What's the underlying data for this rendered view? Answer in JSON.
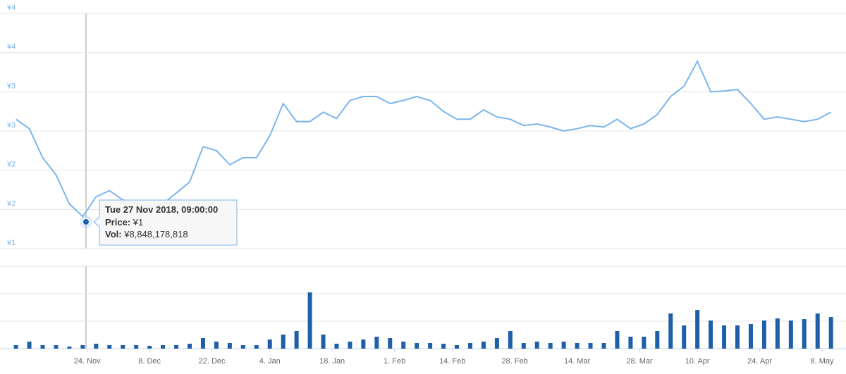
{
  "chart_data": [
    {
      "type": "line",
      "color": "#7cb5ec",
      "x": [
        "2018-11-08",
        "2018-11-11",
        "2018-11-14",
        "2018-11-17",
        "2018-11-20",
        "2018-11-23",
        "2018-11-26",
        "2018-11-29",
        "2018-12-02",
        "2018-12-05",
        "2018-12-08",
        "2018-12-11",
        "2018-12-14",
        "2018-12-17",
        "2018-12-20",
        "2018-12-23",
        "2018-12-26",
        "2018-12-29",
        "2019-01-01",
        "2019-01-04",
        "2019-01-07",
        "2019-01-10",
        "2019-01-13",
        "2019-01-16",
        "2019-01-19",
        "2019-01-22",
        "2019-01-25",
        "2019-01-28",
        "2019-01-31",
        "2019-02-03",
        "2019-02-06",
        "2019-02-09",
        "2019-02-12",
        "2019-02-15",
        "2019-02-18",
        "2019-02-21",
        "2019-02-24",
        "2019-02-27",
        "2019-03-02",
        "2019-03-05",
        "2019-03-08",
        "2019-03-11",
        "2019-03-14",
        "2019-03-17",
        "2019-03-20",
        "2019-03-23",
        "2019-03-26",
        "2019-03-29",
        "2019-04-01",
        "2019-04-04",
        "2019-04-07",
        "2019-04-10",
        "2019-04-13",
        "2019-04-16",
        "2019-04-19",
        "2019-04-22",
        "2019-04-25",
        "2019-04-28",
        "2019-05-01",
        "2019-05-04",
        "2019-05-07",
        "2019-05-10"
      ],
      "values": [
        2.65,
        2.53,
        2.16,
        1.94,
        1.57,
        1.41,
        1.66,
        1.74,
        1.62,
        1.57,
        1.53,
        1.57,
        1.71,
        1.85,
        2.3,
        2.25,
        2.07,
        2.16,
        2.16,
        2.44,
        2.85,
        2.62,
        2.62,
        2.74,
        2.66,
        2.89,
        2.94,
        2.94,
        2.85,
        2.89,
        2.94,
        2.89,
        2.75,
        2.65,
        2.65,
        2.77,
        2.68,
        2.65,
        2.57,
        2.59,
        2.55,
        2.5,
        2.53,
        2.57,
        2.55,
        2.65,
        2.53,
        2.59,
        2.71,
        2.94,
        3.07,
        3.39,
        3.0,
        3.01,
        3.03,
        2.85,
        2.65,
        2.68,
        2.65,
        2.62,
        2.65,
        2.74
      ],
      "xlim": [
        "2018-11-06",
        "2019-05-11"
      ],
      "xticks": [
        {
          "value": "2018-11-24",
          "label": "24. Nov"
        },
        {
          "value": "2018-12-08",
          "label": "8. Dec"
        },
        {
          "value": "2018-12-22",
          "label": "22. Dec"
        },
        {
          "value": "2019-01-04",
          "label": "4. Jan"
        },
        {
          "value": "2019-01-18",
          "label": "18. Jan"
        },
        {
          "value": "2019-02-01",
          "label": "1. Feb"
        },
        {
          "value": "2019-02-14",
          "label": "14. Feb"
        },
        {
          "value": "2019-02-28",
          "label": "28. Feb"
        },
        {
          "value": "2019-03-14",
          "label": "14. Mar"
        },
        {
          "value": "2019-03-28",
          "label": "28. Mar"
        },
        {
          "value": "2019-04-10",
          "label": "10. Apr"
        },
        {
          "value": "2019-04-24",
          "label": "24. Apr"
        },
        {
          "value": "2019-05-08",
          "label": "8. May"
        }
      ],
      "ylim": [
        1,
        4
      ],
      "yticks": [
        {
          "value": 4,
          "label": "¥4"
        },
        {
          "value": 3.5,
          "label": "¥4"
        },
        {
          "value": 3,
          "label": "¥3"
        },
        {
          "value": 2.5,
          "label": "¥3"
        },
        {
          "value": 2,
          "label": "¥2"
        },
        {
          "value": 1.5,
          "label": "¥2"
        },
        {
          "value": 1,
          "label": "¥1"
        }
      ],
      "grid": true
    },
    {
      "type": "bar",
      "color": "#1f5fa8",
      "values": [
        6400000000,
        12800000000,
        6400000000,
        6400000000,
        3840000000,
        6400000000,
        8960000000,
        6400000000,
        6400000000,
        6400000000,
        5120000000,
        6400000000,
        6400000000,
        8960000000,
        19200000000,
        12800000000,
        10240000000,
        6400000000,
        6400000000,
        16640000000,
        25600000000,
        32000000000,
        102400000000,
        25600000000,
        8960000000,
        12800000000,
        16640000000,
        21760000000,
        19200000000,
        12800000000,
        10240000000,
        10240000000,
        8960000000,
        6400000000,
        10240000000,
        12800000000,
        19200000000,
        32000000000,
        10240000000,
        12800000000,
        10240000000,
        12800000000,
        10240000000,
        10240000000,
        10240000000,
        32000000000,
        21760000000,
        21760000000,
        32000000000,
        64000000000,
        42240000000,
        70400000000,
        51200000000,
        42240000000,
        42240000000,
        44800000000,
        51200000000,
        55040000000,
        51200000000,
        53760000000,
        64000000000,
        57600000000
      ],
      "ylim": [
        0,
        150000000000
      ],
      "gridlines": [
        0,
        50000000000,
        100000000000,
        150000000000
      ]
    }
  ],
  "tooltip": {
    "date": "Tue 27 Nov 2018, 09:00:00",
    "price_label": "Price:",
    "price_value": "¥1",
    "vol_label": "Vol:",
    "vol_value": "¥8,848,178,818"
  }
}
